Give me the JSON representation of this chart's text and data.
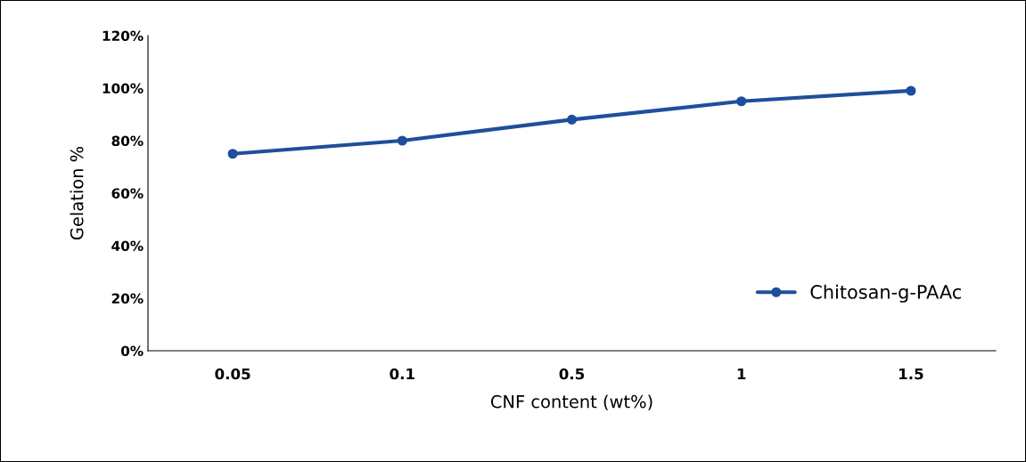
{
  "chart_data": {
    "type": "line",
    "xlabel": "CNF content (wt%)",
    "ylabel": "Gelation %",
    "categories": [
      "0.05",
      "0.1",
      "0.5",
      "1",
      "1.5"
    ],
    "series": [
      {
        "name": "Chitosan-g-PAAc",
        "color": "#1f4e9c",
        "values": [
          75,
          80,
          88,
          95,
          99
        ]
      }
    ],
    "ylim": [
      0,
      120
    ],
    "yticks": [
      {
        "value": 0,
        "label": "0%"
      },
      {
        "value": 20,
        "label": "20%"
      },
      {
        "value": 40,
        "label": "40%"
      },
      {
        "value": 60,
        "label": "60%"
      },
      {
        "value": 80,
        "label": "80%"
      },
      {
        "value": 100,
        "label": "100%"
      },
      {
        "value": 120,
        "label": "120%"
      }
    ],
    "grid": false,
    "legend": "bottom right",
    "marker": "circle",
    "line_style": "solid"
  }
}
